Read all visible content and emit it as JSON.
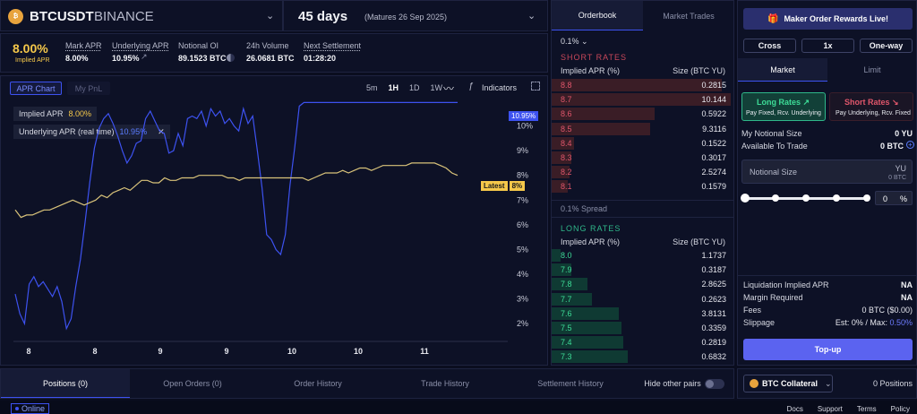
{
  "header": {
    "symbol": "BTCUSDT",
    "exchange": "BINANCE",
    "days": "45 days",
    "maturity": "(Matures 26 Sep 2025)"
  },
  "stats": {
    "implied_apr": "8.00%",
    "implied_label": "Implied APR",
    "mark_apr_label": "Mark APR",
    "mark_apr": "8.00%",
    "underlying_label": "Underlying APR",
    "underlying": "10.95%",
    "notional_label": "Notional OI",
    "notional": "89.1523 BTC",
    "volume_label": "24h Volume",
    "volume": "26.0681 BTC",
    "settle_label": "Next Settlement",
    "settle": "01:28:20"
  },
  "chart_tabs": {
    "apr": "APR Chart",
    "pnl": "My PnL"
  },
  "timeframes": [
    "5m",
    "1H",
    "1D",
    "1W"
  ],
  "timeframe_selected": "1H",
  "indicators": "Indicators",
  "legend": {
    "implied_label": "Implied APR",
    "implied_value": "8.00%",
    "underlying_label": "Underlying APR (real time)",
    "underlying_value": "10.95%"
  },
  "tags": {
    "underlying": "10.95%",
    "latest_label": "Latest",
    "latest_value": "8%"
  },
  "chart_data": {
    "type": "line",
    "x_ticks": [
      "8",
      "8",
      "9",
      "9",
      "10",
      "10",
      "11"
    ],
    "y_ticks": [
      "2%",
      "3%",
      "4%",
      "5%",
      "6%",
      "7%",
      "8%",
      "9%",
      "10%"
    ],
    "ylim": [
      1.5,
      11
    ],
    "series": [
      {
        "color": "#3d52f0",
        "values": [
          3.2,
          2.4,
          2.0,
          3.6,
          3.9,
          3.5,
          3.7,
          3.4,
          3.1,
          3.5,
          2.9,
          1.8,
          2.2,
          3.5,
          4.6,
          6.1,
          7.7,
          9.1,
          9.9,
          10.3,
          10.5,
          10.1,
          9.6,
          9.0,
          8.5,
          8.8,
          9.3,
          9.4,
          10.3,
          10.6,
          10.2,
          9.8,
          9.7,
          8.9,
          9.0,
          9.7,
          9.2,
          10.3,
          10.4,
          10.3,
          10.6,
          10.0,
          10.7,
          10.4,
          10.6,
          10.1,
          10.3,
          10.0,
          9.8,
          10.7,
          10.1,
          10.4,
          9.0,
          7.5,
          5.6,
          5.4,
          5.0,
          4.8,
          5.6,
          7.6,
          9.1,
          10.8,
          10.95,
          10.95,
          10.95,
          10.95,
          10.95,
          10.95,
          10.95,
          10.95,
          10.95,
          10.95,
          10.95,
          10.95,
          10.95,
          10.95,
          10.95,
          10.95,
          10.95,
          10.95,
          10.95,
          10.95,
          10.95,
          10.95,
          10.95,
          10.95,
          10.95,
          10.95,
          10.95,
          10.95,
          10.95,
          10.95,
          10.95,
          10.95,
          10.95,
          10.95
        ]
      },
      {
        "color": "#d9c37a",
        "values": [
          6.6,
          6.3,
          6.4,
          6.4,
          6.5,
          6.6,
          6.6,
          6.7,
          6.8,
          6.9,
          7.0,
          6.9,
          6.8,
          6.9,
          7.0,
          7.2,
          7.1,
          7.3,
          7.4,
          7.5,
          7.4,
          7.6,
          7.8,
          7.8,
          7.7,
          7.7,
          7.9,
          7.8,
          7.8,
          7.9,
          7.9,
          7.9,
          8.0,
          8.0,
          8.0,
          8.0,
          8.0,
          7.9,
          7.9,
          7.8,
          7.9,
          7.9,
          7.9,
          7.9,
          7.9,
          7.9,
          7.9,
          7.9,
          7.9,
          7.9,
          7.9,
          7.8,
          7.9,
          8.0,
          8.1,
          8.1,
          8.1,
          8.2,
          8.1,
          8.2,
          8.3,
          8.3,
          8.2,
          8.3,
          8.4,
          8.4,
          8.4,
          8.4,
          8.4,
          8.5,
          8.5,
          8.5,
          8.5,
          8.5,
          8.4,
          8.3,
          8.1,
          8.0
        ]
      }
    ]
  },
  "orderbook": {
    "tab_active": "Orderbook",
    "tab_other": "Market Trades",
    "step": "0.1%",
    "short_title": "SHORT RATES",
    "col_rate": "Implied APR (%)",
    "col_size": "Size (BTC YU)",
    "short": [
      {
        "r": "8.8",
        "s": "0.2815",
        "w": 190
      },
      {
        "r": "8.7",
        "s": "10.144",
        "w": 200
      },
      {
        "r": "8.6",
        "s": "0.5922",
        "w": 115
      },
      {
        "r": "8.5",
        "s": "9.3116",
        "w": 110
      },
      {
        "r": "8.4",
        "s": "0.1522",
        "w": 25
      },
      {
        "r": "8.3",
        "s": "0.3017",
        "w": 22
      },
      {
        "r": "8.2",
        "s": "2.5274",
        "w": 20
      },
      {
        "r": "8.1",
        "s": "0.1579",
        "w": 18
      }
    ],
    "spread": "0.1% Spread",
    "long_title": "LONG RATES",
    "long": [
      {
        "r": "8.0",
        "s": "1.1737",
        "w": 10
      },
      {
        "r": "7.9",
        "s": "0.3187",
        "w": 22
      },
      {
        "r": "7.8",
        "s": "2.8625",
        "w": 40
      },
      {
        "r": "7.7",
        "s": "0.2623",
        "w": 45
      },
      {
        "r": "7.6",
        "s": "3.8131",
        "w": 75
      },
      {
        "r": "7.5",
        "s": "0.3359",
        "w": 78
      },
      {
        "r": "7.4",
        "s": "0.2819",
        "w": 80
      },
      {
        "r": "7.3",
        "s": "0.6832",
        "w": 85
      }
    ]
  },
  "trade": {
    "banner": "Maker Order Rewards Live!",
    "mode": "Cross",
    "leverage": "1x",
    "direction": "One-way",
    "tab_market": "Market",
    "tab_limit": "Limit",
    "long_title": "Long Rates",
    "long_sub": "Pay Fixed, Rcv. Underlying",
    "short_title": "Short Rates",
    "short_sub": "Pay Underlying, Rcv. Fixed",
    "notional_label": "My Notional Size",
    "notional_value": "0 YU",
    "available_label": "Available To Trade",
    "available_value": "0 BTC",
    "input_label": "Notional Size",
    "input_unit": "YU",
    "input_sub": "0 BTC",
    "pct_value": "0",
    "pct_unit": "%",
    "liq_label": "Liquidation Implied APR",
    "liq_value": "NA",
    "margin_label": "Margin Required",
    "margin_value": "NA",
    "fees_label": "Fees",
    "fees_value": "0 BTC ($0.00)",
    "slip_label": "Slippage",
    "slip_value": "Est: 0% / Max:",
    "slip_max": "0.50%",
    "topup": "Top-up",
    "collateral": "BTC Collateral",
    "positions_count": "0 Positions"
  },
  "bottom": {
    "tabs": [
      "Positions (0)",
      "Open Orders (0)",
      "Order History",
      "Trade History",
      "Settlement History"
    ],
    "hide_label": "Hide other pairs"
  },
  "footer": {
    "status": "Online",
    "links": [
      "Docs",
      "Support",
      "Terms",
      "Policy"
    ]
  }
}
